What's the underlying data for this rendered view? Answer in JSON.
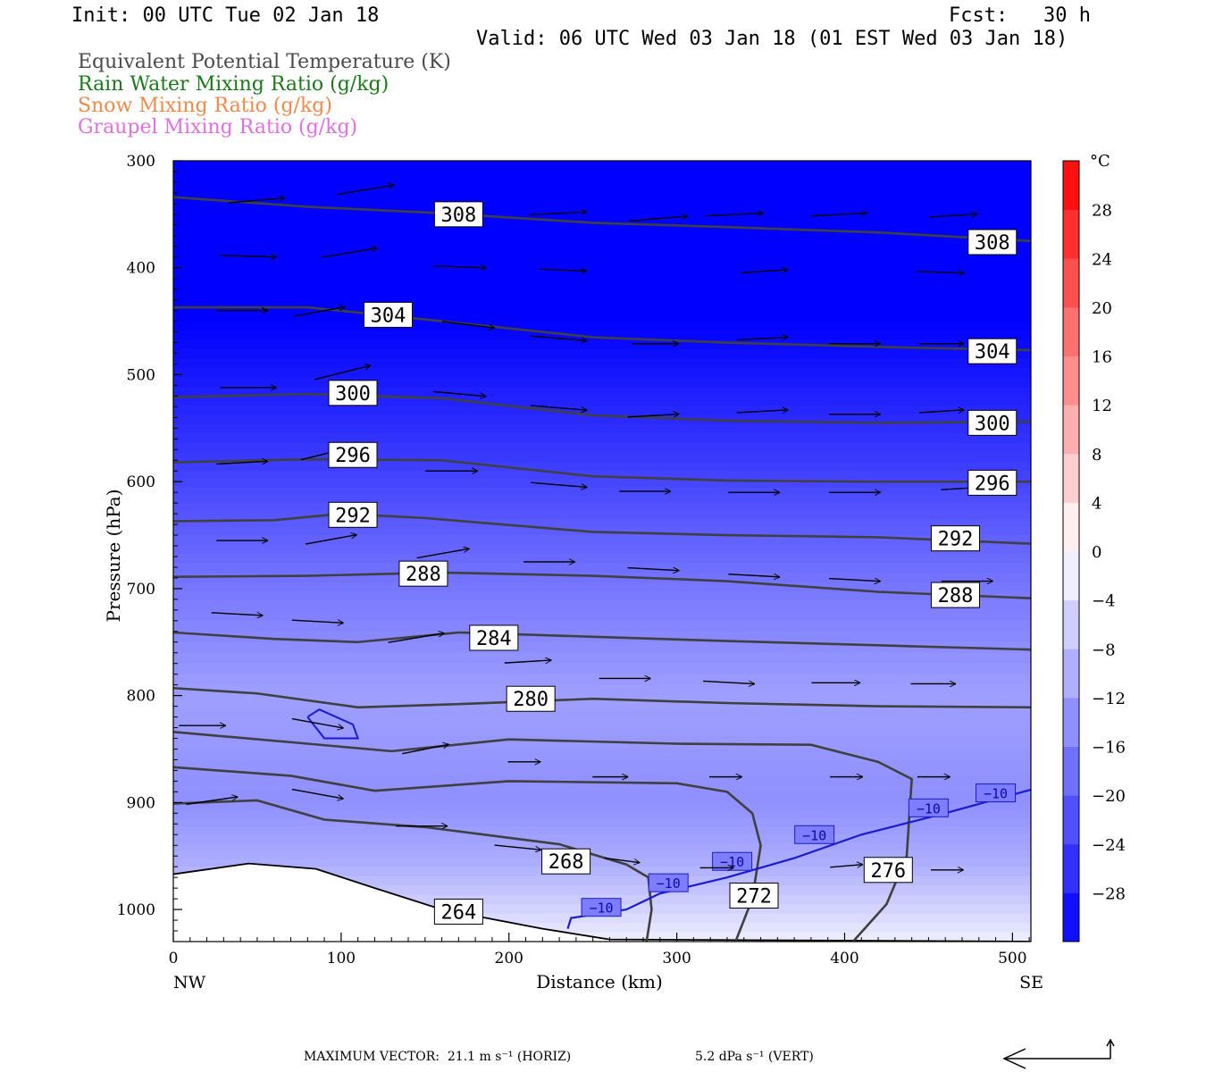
{
  "header": {
    "init": "Init: 00 UTC Tue 02 Jan 18",
    "fcst": "Fcst:   30 h",
    "valid": "Valid: 06 UTC Wed 03 Jan 18 (01 EST Wed 03 Jan 18)"
  },
  "legend": [
    {
      "label": "Equivalent Potential Temperature (K)",
      "color": "#4a4a4a"
    },
    {
      "label": "Rain Water Mixing Ratio (g/kg)",
      "color": "#1a7a1a"
    },
    {
      "label": "Snow Mixing Ratio (g/kg)",
      "color": "#f08a4a"
    },
    {
      "label": "Graupel Mixing Ratio (g/kg)",
      "color": "#e070e0"
    }
  ],
  "footer": {
    "max_vector": "MAXIMUM VECTOR:  21.1 m s⁻¹ (HORIZ)",
    "vert": "5.2 dPa s⁻¹ (VERT)"
  },
  "chart_data": {
    "type": "contour cross-section",
    "xlabel": "Distance (km)",
    "ylabel": "Pressure (hPa)",
    "xlim": [
      0,
      511
    ],
    "ylim": [
      1030,
      300
    ],
    "x_ticks": [
      "0",
      "100",
      "200",
      "300",
      "400",
      "500"
    ],
    "y_ticks": [
      "300",
      "400",
      "500",
      "600",
      "700",
      "800",
      "900",
      "1000"
    ],
    "left_end_label": "NW",
    "right_end_label": "SE",
    "colorbar": {
      "unit": "°C",
      "tick_labels": [
        "28",
        "24",
        "20",
        "16",
        "12",
        "8",
        "4",
        "0",
        "−4",
        "−8",
        "−12",
        "−16",
        "−20",
        "−24",
        "−28"
      ],
      "tick_values": [
        28,
        24,
        20,
        16,
        12,
        8,
        4,
        0,
        -4,
        -8,
        -12,
        -16,
        -20,
        -24,
        -28
      ],
      "min": -32,
      "max": 32,
      "negative_color": "#0000ff",
      "positive_color": "#ff0000"
    },
    "temperature_bands": [
      {
        "p": 300,
        "t": -40
      },
      {
        "p": 450,
        "t": -32
      },
      {
        "p": 520,
        "t": -28
      },
      {
        "p": 590,
        "t": -24
      },
      {
        "p": 650,
        "t": -20
      },
      {
        "p": 720,
        "t": -16
      },
      {
        "p": 800,
        "t": -12
      },
      {
        "p": 900,
        "t": -14
      },
      {
        "p": 960,
        "t": -10
      },
      {
        "p": 1030,
        "t": -2
      }
    ],
    "theta_e_contours": [
      {
        "label": "308",
        "points": [
          [
            0,
            334
          ],
          [
            80,
            343
          ],
          [
            160,
            349
          ],
          [
            250,
            358
          ],
          [
            330,
            362
          ],
          [
            420,
            367
          ],
          [
            511,
            375
          ]
        ]
      },
      {
        "label": "304",
        "points": [
          [
            0,
            437
          ],
          [
            80,
            437
          ],
          [
            160,
            450
          ],
          [
            250,
            465
          ],
          [
            330,
            470
          ],
          [
            420,
            474
          ],
          [
            511,
            477
          ]
        ]
      },
      {
        "label": "300",
        "points": [
          [
            0,
            521
          ],
          [
            80,
            518
          ],
          [
            160,
            522
          ],
          [
            250,
            538
          ],
          [
            330,
            543
          ],
          [
            420,
            545
          ],
          [
            511,
            544
          ]
        ]
      },
      {
        "label": "296",
        "points": [
          [
            0,
            582
          ],
          [
            80,
            579
          ],
          [
            160,
            580
          ],
          [
            250,
            595
          ],
          [
            330,
            599
          ],
          [
            420,
            600
          ],
          [
            511,
            600
          ]
        ]
      },
      {
        "label": "292",
        "points": [
          [
            0,
            637
          ],
          [
            60,
            636
          ],
          [
            100,
            630
          ],
          [
            150,
            634
          ],
          [
            250,
            647
          ],
          [
            330,
            650
          ],
          [
            420,
            652
          ],
          [
            511,
            658
          ]
        ]
      },
      {
        "label": "288",
        "points": [
          [
            0,
            689
          ],
          [
            80,
            688
          ],
          [
            160,
            685
          ],
          [
            250,
            688
          ],
          [
            330,
            693
          ],
          [
            420,
            703
          ],
          [
            511,
            709
          ]
        ]
      },
      {
        "label": "284",
        "points": [
          [
            0,
            741
          ],
          [
            60,
            747
          ],
          [
            110,
            750
          ],
          [
            170,
            741
          ],
          [
            250,
            745
          ],
          [
            330,
            749
          ],
          [
            420,
            753
          ],
          [
            511,
            757
          ]
        ]
      },
      {
        "label": "280",
        "points": [
          [
            0,
            793
          ],
          [
            50,
            798
          ],
          [
            110,
            811
          ],
          [
            170,
            808
          ],
          [
            250,
            803
          ],
          [
            330,
            807
          ],
          [
            420,
            810
          ],
          [
            511,
            811
          ]
        ]
      },
      {
        "label": "",
        "points": [
          [
            0,
            834
          ],
          [
            80,
            845
          ],
          [
            130,
            852
          ],
          [
            200,
            841
          ],
          [
            300,
            845
          ],
          [
            380,
            846
          ],
          [
            420,
            862
          ],
          [
            440,
            878
          ],
          [
            437,
            950
          ],
          [
            425,
            995
          ],
          [
            405,
            1030
          ]
        ]
      },
      {
        "label": "276",
        "points": []
      },
      {
        "label": "",
        "points": [
          [
            0,
            867
          ],
          [
            70,
            875
          ],
          [
            120,
            889
          ],
          [
            200,
            880
          ],
          [
            300,
            882
          ],
          [
            330,
            890
          ],
          [
            345,
            910
          ],
          [
            350,
            940
          ],
          [
            345,
            990
          ],
          [
            335,
            1030
          ]
        ]
      },
      {
        "label": "272",
        "points": []
      },
      {
        "label": "",
        "points": [
          [
            0,
            901
          ],
          [
            50,
            898
          ],
          [
            90,
            916
          ],
          [
            150,
            923
          ],
          [
            230,
            939
          ],
          [
            270,
            958
          ],
          [
            283,
            970
          ],
          [
            285,
            1000
          ],
          [
            282,
            1030
          ]
        ]
      },
      {
        "label": "268",
        "points": []
      },
      {
        "label": "264",
        "points": []
      }
    ],
    "contour_labels": [
      {
        "text": "308",
        "x": 170,
        "p": 350
      },
      {
        "text": "308",
        "x": 488,
        "p": 376
      },
      {
        "text": "304",
        "x": 128,
        "p": 444
      },
      {
        "text": "304",
        "x": 488,
        "p": 478
      },
      {
        "text": "300",
        "x": 107,
        "p": 517
      },
      {
        "text": "300",
        "x": 488,
        "p": 545
      },
      {
        "text": "296",
        "x": 107,
        "p": 575
      },
      {
        "text": "296",
        "x": 488,
        "p": 601
      },
      {
        "text": "292",
        "x": 107,
        "p": 631
      },
      {
        "text": "292",
        "x": 466,
        "p": 653
      },
      {
        "text": "288",
        "x": 149,
        "p": 686
      },
      {
        "text": "288",
        "x": 466,
        "p": 706
      },
      {
        "text": "284",
        "x": 191,
        "p": 746
      },
      {
        "text": "280",
        "x": 213,
        "p": 803
      },
      {
        "text": "268",
        "x": 234,
        "p": 955
      },
      {
        "text": "272",
        "x": 346,
        "p": 987
      },
      {
        "text": "276",
        "x": 426,
        "p": 963
      },
      {
        "text": "264",
        "x": 170,
        "p": 1002
      }
    ],
    "isotherm_minus10": {
      "label": "−10",
      "points": [
        [
          235,
          1018
        ],
        [
          237,
          1008
        ],
        [
          270,
          1000
        ],
        [
          290,
          985
        ],
        [
          330,
          970
        ],
        [
          370,
          952
        ],
        [
          410,
          930
        ],
        [
          460,
          910
        ],
        [
          511,
          888
        ]
      ],
      "labels": [
        {
          "x": 255,
          "p": 998
        },
        {
          "x": 295,
          "p": 975
        },
        {
          "x": 333,
          "p": 955
        },
        {
          "x": 382,
          "p": 930
        },
        {
          "x": 450,
          "p": 905
        },
        {
          "x": 490,
          "p": 891
        }
      ]
    },
    "small_blue_loop": [
      [
        80,
        820
      ],
      [
        87,
        813
      ],
      [
        107,
        827
      ],
      [
        110,
        840
      ],
      [
        90,
        840
      ],
      [
        80,
        820
      ]
    ],
    "ground_profile": [
      [
        0,
        967
      ],
      [
        45,
        957
      ],
      [
        85,
        962
      ],
      [
        120,
        980
      ],
      [
        160,
        1000
      ],
      [
        220,
        1018
      ],
      [
        260,
        1028
      ],
      [
        511,
        1030
      ]
    ],
    "wind_vectors": [
      {
        "x": 65,
        "p": 335,
        "u": 60,
        "w": -5
      },
      {
        "x": 130,
        "p": 323,
        "u": 60,
        "w": -10
      },
      {
        "x": 245,
        "p": 348,
        "u": 62,
        "w": -3
      },
      {
        "x": 305,
        "p": 352,
        "u": 62,
        "w": -5
      },
      {
        "x": 350,
        "p": 349,
        "u": 62,
        "w": -3
      },
      {
        "x": 412,
        "p": 349,
        "u": 60,
        "w": -3
      },
      {
        "x": 478,
        "p": 350,
        "u": 52,
        "w": -3
      },
      {
        "x": 60,
        "p": 390,
        "u": 60,
        "w": 2
      },
      {
        "x": 120,
        "p": 382,
        "u": 60,
        "w": -10
      },
      {
        "x": 185,
        "p": 400,
        "u": 56,
        "w": 2
      },
      {
        "x": 245,
        "p": 403,
        "u": 50,
        "w": 2
      },
      {
        "x": 365,
        "p": 402,
        "u": 50,
        "w": -3
      },
      {
        "x": 470,
        "p": 405,
        "u": 50,
        "w": 2
      },
      {
        "x": 55,
        "p": 440,
        "u": 55,
        "w": 0
      },
      {
        "x": 101,
        "p": 437,
        "u": 55,
        "w": -10
      },
      {
        "x": 190,
        "p": 456,
        "u": 56,
        "w": 7
      },
      {
        "x": 245,
        "p": 468,
        "u": 60,
        "w": 5
      },
      {
        "x": 300,
        "p": 471,
        "u": 50,
        "w": 0
      },
      {
        "x": 365,
        "p": 465,
        "u": 55,
        "w": -3
      },
      {
        "x": 420,
        "p": 471,
        "u": 55,
        "w": 0
      },
      {
        "x": 470,
        "p": 471,
        "u": 48,
        "w": 0
      },
      {
        "x": 60,
        "p": 512,
        "u": 60,
        "w": 0
      },
      {
        "x": 116,
        "p": 492,
        "u": 60,
        "w": -15
      },
      {
        "x": 185,
        "p": 520,
        "u": 56,
        "w": 5
      },
      {
        "x": 245,
        "p": 533,
        "u": 60,
        "w": 5
      },
      {
        "x": 300,
        "p": 537,
        "u": 55,
        "w": -3
      },
      {
        "x": 365,
        "p": 533,
        "u": 55,
        "w": -3
      },
      {
        "x": 420,
        "p": 537,
        "u": 55,
        "w": 0
      },
      {
        "x": 470,
        "p": 533,
        "u": 48,
        "w": -3
      },
      {
        "x": 55,
        "p": 581,
        "u": 55,
        "w": -3
      },
      {
        "x": 108,
        "p": 567,
        "u": 60,
        "w": -15
      },
      {
        "x": 180,
        "p": 590,
        "u": 56,
        "w": 0
      },
      {
        "x": 245,
        "p": 605,
        "u": 60,
        "w": 5
      },
      {
        "x": 295,
        "p": 609,
        "u": 55,
        "w": 0
      },
      {
        "x": 360,
        "p": 610,
        "u": 55,
        "w": 0
      },
      {
        "x": 420,
        "p": 610,
        "u": 55,
        "w": 0
      },
      {
        "x": 483,
        "p": 605,
        "u": 48,
        "w": -3
      },
      {
        "x": 55,
        "p": 655,
        "u": 55,
        "w": 0
      },
      {
        "x": 108,
        "p": 650,
        "u": 55,
        "w": -10
      },
      {
        "x": 175,
        "p": 663,
        "u": 56,
        "w": -10
      },
      {
        "x": 238,
        "p": 675,
        "u": 55,
        "w": 0
      },
      {
        "x": 300,
        "p": 683,
        "u": 55,
        "w": 3
      },
      {
        "x": 360,
        "p": 689,
        "u": 55,
        "w": 3
      },
      {
        "x": 420,
        "p": 693,
        "u": 55,
        "w": 3
      },
      {
        "x": 487,
        "p": 693,
        "u": 55,
        "w": 0
      },
      {
        "x": 52,
        "p": 725,
        "u": 55,
        "w": 3
      },
      {
        "x": 100,
        "p": 732,
        "u": 55,
        "w": 3
      },
      {
        "x": 160,
        "p": 742,
        "u": 60,
        "w": -10
      },
      {
        "x": 224,
        "p": 767,
        "u": 50,
        "w": -3
      },
      {
        "x": 283,
        "p": 784,
        "u": 55,
        "w": 0
      },
      {
        "x": 345,
        "p": 789,
        "u": 55,
        "w": 3
      },
      {
        "x": 408,
        "p": 788,
        "u": 52,
        "w": 0
      },
      {
        "x": 465,
        "p": 789,
        "u": 48,
        "w": 0
      },
      {
        "x": 30,
        "p": 828,
        "u": 50,
        "w": 0
      },
      {
        "x": 100,
        "p": 830,
        "u": 55,
        "w": 10
      },
      {
        "x": 163,
        "p": 846,
        "u": 50,
        "w": -10
      },
      {
        "x": 218,
        "p": 862,
        "u": 35,
        "w": 0
      },
      {
        "x": 270,
        "p": 876,
        "u": 38,
        "w": 0
      },
      {
        "x": 338,
        "p": 876,
        "u": 35,
        "w": 0
      },
      {
        "x": 410,
        "p": 876,
        "u": 35,
        "w": 0
      },
      {
        "x": 462,
        "p": 876,
        "u": 35,
        "w": 0
      },
      {
        "x": 37,
        "p": 895,
        "u": 55,
        "w": -8
      },
      {
        "x": 100,
        "p": 896,
        "u": 55,
        "w": 10
      },
      {
        "x": 162,
        "p": 922,
        "u": 55,
        "w": 0
      },
      {
        "x": 218,
        "p": 944,
        "u": 50,
        "w": 5
      },
      {
        "x": 277,
        "p": 956,
        "u": 38,
        "w": 5
      },
      {
        "x": 333,
        "p": 961,
        "u": 36,
        "w": 0
      },
      {
        "x": 410,
        "p": 958,
        "u": 35,
        "w": -3
      },
      {
        "x": 470,
        "p": 963,
        "u": 35,
        "w": 0
      }
    ]
  }
}
